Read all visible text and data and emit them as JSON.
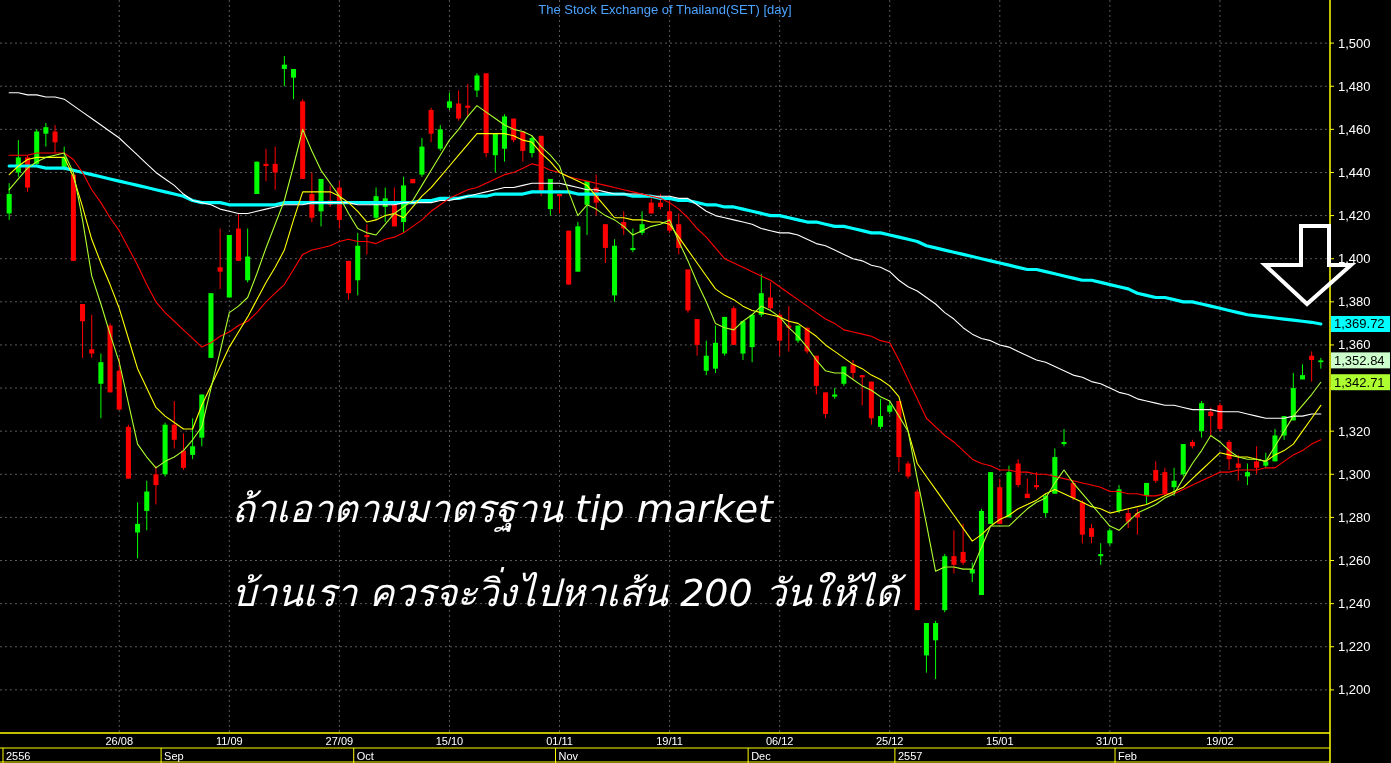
{
  "chart_data": {
    "type": "candlestick",
    "title": "The Stock Exchange of Thailand(SET) [day]",
    "categories": [
      null,
      null,
      null,
      null,
      null,
      null,
      null,
      null,
      null,
      null,
      null,
      null,
      "26/08",
      null,
      null,
      null,
      null,
      null,
      null,
      null,
      null,
      null,
      null,
      null,
      "11/09",
      null,
      null,
      null,
      null,
      null,
      null,
      null,
      null,
      null,
      null,
      null,
      "27/09",
      null,
      null,
      null,
      null,
      null,
      null,
      null,
      null,
      null,
      null,
      null,
      "15/10",
      null,
      null,
      null,
      null,
      null,
      null,
      null,
      null,
      null,
      null,
      null,
      "01/11",
      null,
      null,
      null,
      null,
      null,
      null,
      null,
      null,
      null,
      null,
      null,
      "19/11",
      null,
      null,
      null,
      null,
      null,
      null,
      null,
      null,
      null,
      null,
      null,
      "06/12",
      null,
      null,
      null,
      null,
      null,
      null,
      null,
      null,
      null,
      null,
      null,
      "25/12",
      null,
      null,
      null,
      null,
      null,
      null,
      null,
      null,
      null,
      null,
      null,
      "15/01",
      null,
      null,
      null,
      null,
      null,
      null,
      null,
      null,
      null,
      null,
      null,
      "31/01",
      null,
      null,
      null,
      null,
      null,
      null,
      null,
      null,
      null,
      null,
      null,
      "19/02",
      null,
      null,
      null,
      null,
      null,
      null,
      null,
      null,
      null,
      null,
      null
    ],
    "ohlc": [
      [
        1421,
        1435,
        1418,
        1430
      ],
      [
        1440,
        1455,
        1438,
        1447
      ],
      [
        1447,
        1448,
        1431,
        1433
      ],
      [
        1444,
        1460,
        1443,
        1459
      ],
      [
        1458,
        1463,
        1452,
        1461
      ],
      [
        1459,
        1462,
        1449,
        1454
      ],
      [
        1442,
        1452,
        1441,
        1447
      ],
      [
        1439,
        1440,
        1399,
        1399
      ],
      [
        1379,
        1379,
        1354,
        1371
      ],
      [
        1358,
        1374,
        1354,
        1356
      ],
      [
        1342,
        1356,
        1326,
        1352
      ],
      [
        1369,
        1370,
        1338,
        1338
      ],
      [
        1348,
        1354,
        1330,
        1330
      ],
      [
        1322,
        1323,
        1298,
        1298
      ],
      [
        1273,
        1287,
        1261,
        1277
      ],
      [
        1283,
        1297,
        1274,
        1292
      ],
      [
        1300,
        1304,
        1286,
        1295
      ],
      [
        1300,
        1324,
        1299,
        1323
      ],
      [
        1323,
        1334,
        1312,
        1316
      ],
      [
        1311,
        1319,
        1302,
        1303
      ],
      [
        1309,
        1326,
        1307,
        1313
      ],
      [
        1317,
        1337,
        1313,
        1337
      ],
      [
        1354,
        1384,
        1354,
        1384
      ],
      [
        1396,
        1414,
        1386,
        1394
      ],
      [
        1382,
        1411,
        1382,
        1411
      ],
      [
        1414,
        1421,
        1399,
        1399
      ],
      [
        1390,
        1414,
        1389,
        1401
      ],
      [
        1430,
        1445,
        1430,
        1445
      ],
      [
        1444,
        1451,
        1436,
        1443
      ],
      [
        1444,
        1452,
        1432,
        1440
      ],
      [
        1488,
        1494,
        1480,
        1490
      ],
      [
        1484,
        1488,
        1474,
        1488
      ],
      [
        1473,
        1474,
        1437,
        1437
      ],
      [
        1430,
        1440,
        1417,
        1419
      ],
      [
        1422,
        1437,
        1415,
        1437
      ],
      [
        1427,
        1434,
        1424,
        1425
      ],
      [
        1433,
        1436,
        1414,
        1418
      ],
      [
        1399,
        1399,
        1381,
        1384
      ],
      [
        1390,
        1412,
        1383,
        1406
      ],
      [
        1411,
        1416,
        1402,
        1410
      ],
      [
        1419,
        1433,
        1418,
        1429
      ],
      [
        1424,
        1433,
        1417,
        1428
      ],
      [
        1425,
        1433,
        1415,
        1415
      ],
      [
        1417,
        1438,
        1412,
        1434
      ],
      [
        1437,
        1437,
        1435,
        1435
      ],
      [
        1439,
        1456,
        1438,
        1452
      ],
      [
        1469,
        1470,
        1454,
        1458
      ],
      [
        1451,
        1462,
        1450,
        1460
      ],
      [
        1470,
        1477,
        1469,
        1473
      ],
      [
        1472,
        1478,
        1464,
        1465
      ],
      [
        1471,
        1481,
        1466,
        1470
      ],
      [
        1478,
        1486,
        1475,
        1485
      ],
      [
        1486,
        1486,
        1447,
        1449
      ],
      [
        1448,
        1458,
        1440,
        1458
      ],
      [
        1451,
        1467,
        1445,
        1466
      ],
      [
        1465,
        1465,
        1454,
        1455
      ],
      [
        1459,
        1459,
        1445,
        1450
      ],
      [
        1449,
        1457,
        1447,
        1456
      ],
      [
        1457,
        1457,
        1429,
        1431
      ],
      [
        1423,
        1437,
        1420,
        1437
      ],
      [
        1430,
        1430,
        1421,
        1429
      ],
      [
        1413,
        1413,
        1388,
        1388
      ],
      [
        1394,
        1417,
        1394,
        1415
      ],
      [
        1425,
        1436,
        1411,
        1436
      ],
      [
        1433,
        1439,
        1420,
        1426
      ],
      [
        1416,
        1416,
        1398,
        1405
      ],
      [
        1383,
        1409,
        1380,
        1406
      ],
      [
        1417,
        1422,
        1411,
        1414
      ],
      [
        1404,
        1414,
        1403,
        1405
      ],
      [
        1412,
        1422,
        1411,
        1416
      ],
      [
        1426,
        1428,
        1421,
        1421
      ],
      [
        1426,
        1430,
        1423,
        1424
      ],
      [
        1422,
        1427,
        1412,
        1413
      ],
      [
        1416,
        1421,
        1402,
        1405
      ],
      [
        1395,
        1395,
        1375,
        1376
      ],
      [
        1372,
        1372,
        1355,
        1360
      ],
      [
        1348,
        1362,
        1346,
        1355
      ],
      [
        1349,
        1369,
        1347,
        1361
      ],
      [
        1356,
        1373,
        1355,
        1373
      ],
      [
        1377,
        1378,
        1360,
        1360
      ],
      [
        1356,
        1371,
        1353,
        1371
      ],
      [
        1359,
        1374,
        1352,
        1374
      ],
      [
        1374,
        1393,
        1373,
        1384
      ],
      [
        1382,
        1389,
        1376,
        1377
      ],
      [
        1374,
        1375,
        1355,
        1362
      ],
      [
        1369,
        1378,
        1357,
        1368
      ],
      [
        1362,
        1369,
        1361,
        1369
      ],
      [
        1368,
        1368,
        1356,
        1357
      ],
      [
        1355,
        1355,
        1337,
        1341
      ],
      [
        1338,
        1338,
        1326,
        1328
      ],
      [
        1336,
        1340,
        1335,
        1337
      ],
      [
        1342,
        1350,
        1341,
        1350
      ],
      [
        1351,
        1353,
        1344,
        1347
      ],
      [
        1346,
        1346,
        1332,
        1345
      ],
      [
        1343,
        1343,
        1323,
        1326
      ],
      [
        1322,
        1335,
        1321,
        1327
      ],
      [
        1329,
        1334,
        1328,
        1332
      ],
      [
        1334,
        1334,
        1301,
        1308
      ],
      [
        1305,
        1306,
        1298,
        1299
      ],
      [
        1292,
        1293,
        1237,
        1237
      ],
      [
        1216,
        1231,
        1208,
        1231
      ],
      [
        1223,
        1232,
        1205,
        1231
      ],
      [
        1237,
        1263,
        1236,
        1262
      ],
      [
        1262,
        1274,
        1254,
        1258
      ],
      [
        1264,
        1277,
        1258,
        1259
      ],
      [
        1254,
        1259,
        1250,
        1256
      ],
      [
        1244,
        1284,
        1244,
        1283
      ],
      [
        1277,
        1301,
        1277,
        1301
      ],
      [
        1294,
        1298,
        1277,
        1277
      ],
      [
        1280,
        1304,
        1280,
        1301
      ],
      [
        1305,
        1307,
        1294,
        1295
      ],
      [
        1291,
        1298,
        1289,
        1289
      ],
      [
        1295,
        1301,
        1293,
        1294
      ],
      [
        1282,
        1291,
        1280,
        1290
      ],
      [
        1291,
        1312,
        1291,
        1308
      ],
      [
        1314,
        1321,
        1313,
        1315
      ],
      [
        1296,
        1297,
        1288,
        1289
      ],
      [
        1287,
        1288,
        1268,
        1272
      ],
      [
        1275,
        1277,
        1268,
        1271
      ],
      [
        1262,
        1268,
        1258,
        1263
      ],
      [
        1268,
        1275,
        1267,
        1274
      ],
      [
        1283,
        1295,
        1282,
        1293
      ],
      [
        1282,
        1284,
        1275,
        1278
      ],
      [
        1282,
        1284,
        1272,
        1280
      ],
      [
        1290,
        1296,
        1286,
        1296
      ],
      [
        1302,
        1306,
        1296,
        1297
      ],
      [
        1301,
        1303,
        1290,
        1291
      ],
      [
        1294,
        1303,
        1290,
        1297
      ],
      [
        1300,
        1314,
        1299,
        1314
      ],
      [
        1315,
        1316,
        1312,
        1313
      ],
      [
        1320,
        1334,
        1317,
        1333
      ],
      [
        1329,
        1331,
        1318,
        1327
      ],
      [
        1332,
        1333,
        1320,
        1321
      ],
      [
        1315,
        1316,
        1302,
        1307
      ],
      [
        1305,
        1309,
        1297,
        1303
      ],
      [
        1299,
        1305,
        1295,
        1301
      ],
      [
        1306,
        1313,
        1300,
        1303
      ],
      [
        1304,
        1310,
        1303,
        1306
      ],
      [
        1306,
        1321,
        1306,
        1318
      ],
      [
        1318,
        1327,
        1316,
        1327
      ],
      [
        1325,
        1347,
        1325,
        1340
      ],
      [
        1344,
        1351,
        1344,
        1346
      ],
      [
        1355,
        1357,
        1343,
        1353
      ],
      [
        1352,
        1354,
        1349,
        1352.84
      ]
    ],
    "series": [
      {
        "type": "line",
        "color": "#00ffff",
        "values": [
          1443,
          1443,
          1443,
          1443,
          1442,
          1442,
          1442,
          1441,
          1440,
          1439,
          1438,
          1437,
          1436,
          1435,
          1434,
          1433,
          1432,
          1431,
          1430,
          1429,
          1427,
          1426,
          1426,
          1426,
          1425,
          1425,
          1425,
          1425,
          1425,
          1425,
          1426,
          1426,
          1426,
          1426,
          1426,
          1426,
          1426,
          1426,
          1426,
          1426,
          1426,
          1426,
          1426,
          1426,
          1426,
          1427,
          1427,
          1428,
          1428,
          1428,
          1429,
          1429,
          1429,
          1430,
          1430,
          1430,
          1430,
          1431,
          1431,
          1431,
          1431,
          1431,
          1430,
          1430,
          1430,
          1430,
          1430,
          1430,
          1429,
          1429,
          1429,
          1428,
          1428,
          1427,
          1427,
          1426,
          1425,
          1425,
          1424,
          1424,
          1423,
          1422,
          1421,
          1420,
          1420,
          1419,
          1418,
          1417,
          1417,
          1416,
          1415,
          1415,
          1414,
          1413,
          1412,
          1412,
          1411,
          1410,
          1409,
          1408,
          1406,
          1405,
          1404,
          1403,
          1402,
          1401,
          1400,
          1399,
          1398,
          1397,
          1396,
          1395,
          1395,
          1394,
          1393,
          1392,
          1391,
          1390,
          1390,
          1389,
          1388,
          1387,
          1386,
          1384,
          1383,
          1382,
          1382,
          1381,
          1380,
          1380,
          1379,
          1378,
          1377,
          1376,
          1375,
          1374,
          1373.5,
          1373,
          1372.5,
          1372,
          1371.5,
          1371,
          1370.5,
          1369.72
        ]
      },
      {
        "type": "line",
        "color": "#ffffff",
        "values": [
          1477,
          1477,
          1476,
          1476,
          1475,
          1475,
          1474,
          1471,
          1468,
          1465,
          1462,
          1459,
          1456,
          1452,
          1448,
          1444,
          1440,
          1437,
          1434,
          1430,
          1427,
          1426,
          1425,
          1423,
          1422,
          1421,
          1421,
          1422,
          1423,
          1424,
          1425,
          1425,
          1425,
          1426,
          1426,
          1426,
          1426,
          1426,
          1425,
          1425,
          1425,
          1425,
          1425,
          1426,
          1426,
          1426,
          1426,
          1427,
          1427,
          1428,
          1429,
          1430,
          1431,
          1432,
          1433,
          1433,
          1434,
          1435,
          1435,
          1435,
          1435,
          1434,
          1433,
          1432,
          1432,
          1431,
          1430,
          1430,
          1430,
          1430,
          1429,
          1429,
          1429,
          1428,
          1428,
          1425,
          1422,
          1420,
          1419,
          1418,
          1417,
          1416,
          1414,
          1413,
          1412,
          1412,
          1411,
          1409,
          1407,
          1406,
          1404,
          1402,
          1400,
          1399,
          1397,
          1396,
          1394,
          1390,
          1387,
          1385,
          1382,
          1379,
          1375,
          1372,
          1368,
          1365,
          1363,
          1362,
          1360,
          1359,
          1357,
          1355,
          1353,
          1352,
          1350,
          1348,
          1346,
          1345,
          1343,
          1342,
          1340,
          1338,
          1337,
          1335,
          1334,
          1333,
          1332,
          1332,
          1331,
          1330,
          1330,
          1330,
          1329,
          1329,
          1329,
          1328,
          1327,
          1326,
          1326,
          1326,
          1327,
          1327,
          1328,
          1328
        ]
      },
      {
        "type": "line",
        "color": "#ff0000",
        "values": [
          1448,
          1448,
          1448,
          1449,
          1449,
          1449,
          1449,
          1446,
          1440,
          1432,
          1426,
          1419,
          1413,
          1405,
          1397,
          1388,
          1380,
          1375,
          1371,
          1367,
          1363,
          1359,
          1361,
          1364,
          1366,
          1369,
          1371,
          1375,
          1380,
          1384,
          1388,
          1395,
          1402,
          1404,
          1405,
          1406,
          1408,
          1409,
          1408,
          1408,
          1407,
          1409,
          1410,
          1412,
          1415,
          1418,
          1422,
          1425,
          1428,
          1430,
          1432,
          1433,
          1435,
          1437,
          1439,
          1440,
          1442,
          1444,
          1443,
          1441,
          1440,
          1438,
          1437,
          1436,
          1435,
          1434,
          1433,
          1432,
          1431,
          1430,
          1429,
          1428,
          1426,
          1423,
          1419,
          1414,
          1410,
          1405,
          1400,
          1398,
          1396,
          1394,
          1392,
          1390,
          1387,
          1384,
          1381,
          1378,
          1375,
          1372,
          1370,
          1367,
          1366,
          1365,
          1364,
          1362,
          1361,
          1353,
          1344,
          1335,
          1326,
          1322,
          1318,
          1315,
          1311,
          1307,
          1305,
          1304,
          1302,
          1302,
          1301,
          1301,
          1300,
          1300,
          1299,
          1298,
          1297,
          1296,
          1295,
          1294,
          1292,
          1292,
          1291,
          1291,
          1290,
          1290,
          1291,
          1291,
          1293,
          1295,
          1297,
          1299,
          1301,
          1301,
          1302,
          1302,
          1302,
          1303,
          1303,
          1306,
          1309,
          1311,
          1314,
          1316
        ]
      },
      {
        "type": "line",
        "color": "#ffff00",
        "values": [
          1439,
          1443,
          1446,
          1447,
          1447,
          1447,
          1447,
          1438,
          1424,
          1409,
          1398,
          1388,
          1377,
          1363,
          1349,
          1340,
          1331,
          1327,
          1324,
          1321,
          1321,
          1332,
          1341,
          1350,
          1359,
          1366,
          1373,
          1381,
          1389,
          1396,
          1404,
          1418,
          1431,
          1431,
          1431,
          1431,
          1429,
          1426,
          1422,
          1417,
          1418,
          1420,
          1421,
          1419,
          1424,
          1429,
          1433,
          1438,
          1443,
          1448,
          1453,
          1458,
          1458,
          1458,
          1458,
          1457,
          1455,
          1454,
          1449,
          1445,
          1440,
          1438,
          1436,
          1434,
          1429,
          1424,
          1419,
          1419,
          1418,
          1418,
          1417,
          1417,
          1416,
          1410,
          1404,
          1398,
          1392,
          1386,
          1383,
          1381,
          1378,
          1376,
          1375,
          1374,
          1373,
          1371,
          1370,
          1367,
          1364,
          1360,
          1357,
          1354,
          1351,
          1349,
          1346,
          1344,
          1341,
          1336,
          1320,
          1305,
          1299,
          1293,
          1287,
          1281,
          1275,
          1269,
          1272,
          1276,
          1279,
          1281,
          1284,
          1286,
          1288,
          1291,
          1293,
          1291,
          1289,
          1287,
          1285,
          1284,
          1282,
          1283,
          1284,
          1285,
          1286,
          1288,
          1290,
          1292,
          1294,
          1298,
          1302,
          1306,
          1310,
          1309,
          1308,
          1308,
          1307,
          1306,
          1309,
          1311,
          1314,
          1320,
          1326,
          1332
        ]
      },
      {
        "type": "line",
        "color": "#adff2f",
        "values": [
          1432,
          1437,
          1442,
          1445,
          1447,
          1448,
          1449,
          1440,
          1418,
          1392,
          1379,
          1365,
          1352,
          1333,
          1314,
          1308,
          1303,
          1306,
          1308,
          1311,
          1316,
          1322,
          1340,
          1357,
          1375,
          1378,
          1382,
          1393,
          1405,
          1416,
          1427,
          1443,
          1460,
          1450,
          1441,
          1435,
          1429,
          1421,
          1414,
          1412,
          1411,
          1416,
          1421,
          1424,
          1427,
          1434,
          1441,
          1448,
          1455,
          1460,
          1466,
          1471,
          1468,
          1465,
          1462,
          1460,
          1459,
          1457,
          1452,
          1448,
          1443,
          1431,
          1420,
          1425,
          1423,
          1420,
          1418,
          1415,
          1411,
          1413,
          1415,
          1416,
          1418,
          1408,
          1399,
          1389,
          1380,
          1370,
          1368,
          1367,
          1371,
          1374,
          1378,
          1376,
          1373,
          1368,
          1364,
          1359,
          1353,
          1348,
          1347,
          1347,
          1344,
          1341,
          1339,
          1336,
          1334,
          1327,
          1320,
          1298,
          1277,
          1255,
          1257,
          1257,
          1256,
          1256,
          1266,
          1276,
          1276,
          1276,
          1280,
          1284,
          1287,
          1289,
          1296,
          1302,
          1296,
          1291,
          1286,
          1281,
          1276,
          1274,
          1278,
          1282,
          1284,
          1286,
          1289,
          1291,
          1298,
          1305,
          1311,
          1318,
          1315,
          1311,
          1308,
          1307,
          1307,
          1306,
          1313,
          1320,
          1327,
          1332,
          1337,
          1342.71
        ]
      }
    ],
    "ylim": [
      1180,
      1520
    ],
    "yticks": [
      {
        "value": 1200,
        "label": "1,200"
      },
      {
        "value": 1220,
        "label": "1,220"
      },
      {
        "value": 1240,
        "label": "1,240"
      },
      {
        "value": 1260,
        "label": "1,260"
      },
      {
        "value": 1280,
        "label": "1,280"
      },
      {
        "value": 1300,
        "label": "1,300"
      },
      {
        "value": 1320,
        "label": "1,320"
      },
      {
        "value": 1340,
        "label": null
      },
      {
        "value": 1360,
        "label": "1,360"
      },
      {
        "value": 1380,
        "label": "1,380"
      },
      {
        "value": 1400,
        "label": "1,400"
      },
      {
        "value": 1420,
        "label": "1,420"
      },
      {
        "value": 1440,
        "label": "1,440"
      },
      {
        "value": 1460,
        "label": "1,460"
      },
      {
        "value": 1480,
        "label": "1,480"
      },
      {
        "value": 1500,
        "label": "1,500"
      }
    ],
    "grid": true,
    "annotations": [
      "ถ้าเอาตามมาตรฐาน tip market",
      "บ้านเรา ควรจะวิ่งไปหาเส้น 200 วันให้ได้",
      "1,369.72",
      "1,352.84",
      "1,342.71",
      "2556",
      "Sep",
      "Oct",
      "Nov",
      "Dec",
      "2557",
      "Feb"
    ]
  }
}
